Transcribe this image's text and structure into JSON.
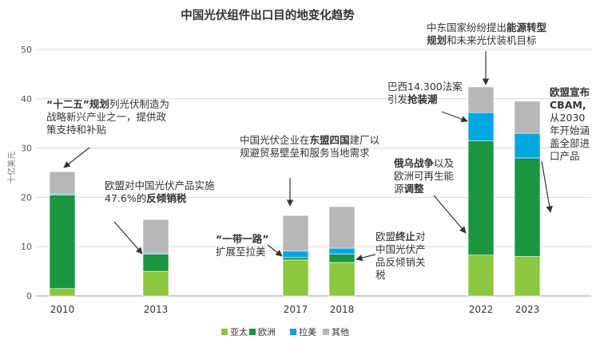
{
  "chart_data": {
    "type": "bar",
    "stacked": true,
    "title": "中国光伏组件出口目的地变化趋势",
    "ylabel": "十亿美元",
    "ylim": [
      0,
      50
    ],
    "yticks": [
      0,
      10,
      20,
      30,
      40,
      50
    ],
    "grid": true,
    "legend_position": "bottom-center",
    "categories": [
      "2010",
      "2013",
      "2017",
      "2018",
      "2022",
      "2023"
    ],
    "series": [
      {
        "name": "亚太",
        "color": "#8dc63f",
        "values": [
          1.5,
          5.0,
          7.3,
          6.8,
          8.3,
          8.0
        ]
      },
      {
        "name": "欧洲",
        "color": "#1a9641",
        "values": [
          19.0,
          3.5,
          0.5,
          1.7,
          23.2,
          20.0
        ]
      },
      {
        "name": "拉美",
        "color": "#00a6e0",
        "values": [
          0.2,
          0.2,
          1.3,
          1.2,
          5.7,
          5.0
        ]
      },
      {
        "name": "其他",
        "color": "#b7b7b7",
        "values": [
          4.5,
          6.8,
          7.2,
          8.4,
          5.2,
          6.5
        ]
      }
    ]
  },
  "annotations": [
    {
      "segments": [
        {
          "t": "“十二五”规划",
          "b": true
        },
        {
          "t": "列光伏制造为\n战略新兴产业之一，提供政\n策支持和补贴",
          "b": false
        }
      ]
    },
    {
      "segments": [
        {
          "t": "欧盟对中国光伏产品实施\n47.6%的",
          "b": false
        },
        {
          "t": "反倾销税",
          "b": true
        }
      ]
    },
    {
      "segments": [
        {
          "t": "“一带一路”",
          "b": true
        },
        {
          "t": "\n扩展至拉美",
          "b": false
        }
      ]
    },
    {
      "segments": [
        {
          "t": "中国光伏企业在",
          "b": false
        },
        {
          "t": "东盟四国",
          "b": true
        },
        {
          "t": "建厂以\n规避贸易壁垒和服务当地需求",
          "b": false
        }
      ]
    },
    {
      "segments": [
        {
          "t": "欧盟",
          "b": false
        },
        {
          "t": "终止",
          "b": true
        },
        {
          "t": "对\n中国光伏产\n品反倾销关\n税",
          "b": false
        }
      ]
    },
    {
      "segments": [
        {
          "t": "中东国家纷纷提出",
          "b": false
        },
        {
          "t": "能源转型\n规划",
          "b": true
        },
        {
          "t": "和未来光伏装机目标",
          "b": false
        }
      ]
    },
    {
      "segments": [
        {
          "t": "巴西14.300法案\n引发",
          "b": false
        },
        {
          "t": "抢装潮",
          "b": true
        }
      ]
    },
    {
      "segments": [
        {
          "t": "俄乌战争",
          "b": true
        },
        {
          "t": "以及\n欧洲可再生能\n源",
          "b": false
        },
        {
          "t": "调整",
          "b": true
        }
      ]
    },
    {
      "segments": [
        {
          "t": "欧盟宣布\nCBAM,",
          "b": true
        },
        {
          "t": "\n从2030\n年开始涵\n盖全部进\n口产品",
          "b": false
        }
      ]
    }
  ]
}
